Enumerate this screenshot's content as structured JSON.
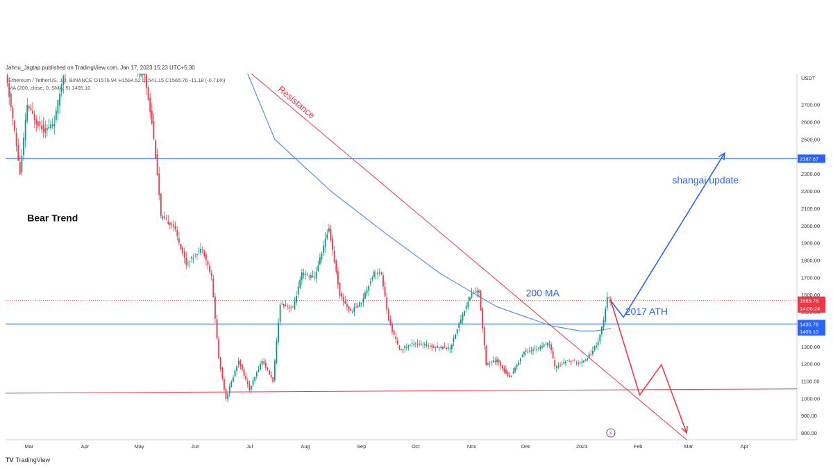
{
  "header": {
    "published": "Jahnu_Jagtap published on TradingView.com, Jan 17, 2023 15:23 UTC+5:30",
    "symbol_line": "Ethereum / TetherUS, 1D, BINANCE  O1576.94  H1594.52  L1541.15  C1565.76  -11.18 (-0.71%)",
    "ma_line": "MA (200, close, 0, SMA, 5)  1405.10"
  },
  "footer": {
    "logo_text": "TradingView"
  },
  "chart_data": {
    "type": "candlestick",
    "symbol": "ETHUSDT",
    "timeframe": "1D",
    "currency": "USDT",
    "y_axis": {
      "range": [
        760,
        2880
      ],
      "ticks": [
        800,
        900,
        1000,
        1100,
        1200,
        1300,
        1400,
        1500,
        1600,
        1700,
        1800,
        1900,
        2000,
        2100,
        2200,
        2300,
        2400,
        2500,
        2600,
        2700
      ]
    },
    "x_axis": {
      "start": "2022-02-16",
      "end": "2023-04-30",
      "ticks": [
        {
          "date": "2022-03-01",
          "label": "Mar"
        },
        {
          "date": "2022-04-01",
          "label": "Apr"
        },
        {
          "date": "2022-05-01",
          "label": "May"
        },
        {
          "date": "2022-06-01",
          "label": "Jun"
        },
        {
          "date": "2022-07-01",
          "label": "Jul"
        },
        {
          "date": "2022-08-01",
          "label": "Aug"
        },
        {
          "date": "2022-09-01",
          "label": "Sep"
        },
        {
          "date": "2022-10-01",
          "label": "Oct"
        },
        {
          "date": "2022-11-01",
          "label": "Nov"
        },
        {
          "date": "2022-12-01",
          "label": "Dec"
        },
        {
          "date": "2023-01-01",
          "label": "2023"
        },
        {
          "date": "2023-02-01",
          "label": "Feb"
        },
        {
          "date": "2023-03-01",
          "label": "Mar"
        },
        {
          "date": "2023-04-01",
          "label": "Apr"
        }
      ]
    },
    "price_path": [
      [
        "2022-02-16",
        2880
      ],
      [
        "2022-02-20",
        2620
      ],
      [
        "2022-02-24",
        2300
      ],
      [
        "2022-02-28",
        2700
      ],
      [
        "2022-03-05",
        2600
      ],
      [
        "2022-03-10",
        2550
      ],
      [
        "2022-03-15",
        2600
      ],
      [
        "2022-03-20",
        2880
      ],
      [
        "2022-05-01",
        2880
      ],
      [
        "2022-05-04",
        2870
      ],
      [
        "2022-05-08",
        2600
      ],
      [
        "2022-05-11",
        2300
      ],
      [
        "2022-05-13",
        2050
      ],
      [
        "2022-05-20",
        2000
      ],
      [
        "2022-05-27",
        1780
      ],
      [
        "2022-06-05",
        1870
      ],
      [
        "2022-06-10",
        1700
      ],
      [
        "2022-06-14",
        1230
      ],
      [
        "2022-06-18",
        1000
      ],
      [
        "2022-06-25",
        1220
      ],
      [
        "2022-07-01",
        1050
      ],
      [
        "2022-07-08",
        1220
      ],
      [
        "2022-07-14",
        1100
      ],
      [
        "2022-07-18",
        1550
      ],
      [
        "2022-07-25",
        1520
      ],
      [
        "2022-07-30",
        1720
      ],
      [
        "2022-08-06",
        1700
      ],
      [
        "2022-08-14",
        1990
      ],
      [
        "2022-08-20",
        1600
      ],
      [
        "2022-08-26",
        1500
      ],
      [
        "2022-09-01",
        1560
      ],
      [
        "2022-09-08",
        1730
      ],
      [
        "2022-09-12",
        1720
      ],
      [
        "2022-09-16",
        1450
      ],
      [
        "2022-09-22",
        1280
      ],
      [
        "2022-09-30",
        1320
      ],
      [
        "2022-10-10",
        1300
      ],
      [
        "2022-10-20",
        1290
      ],
      [
        "2022-10-26",
        1460
      ],
      [
        "2022-11-01",
        1610
      ],
      [
        "2022-11-05",
        1620
      ],
      [
        "2022-11-09",
        1200
      ],
      [
        "2022-11-15",
        1220
      ],
      [
        "2022-11-22",
        1120
      ],
      [
        "2022-11-30",
        1270
      ],
      [
        "2022-12-05",
        1280
      ],
      [
        "2022-12-14",
        1320
      ],
      [
        "2022-12-17",
        1180
      ],
      [
        "2022-12-25",
        1220
      ],
      [
        "2022-12-31",
        1200
      ],
      [
        "2023-01-06",
        1260
      ],
      [
        "2023-01-10",
        1330
      ],
      [
        "2023-01-13",
        1450
      ],
      [
        "2023-01-15",
        1580
      ],
      [
        "2023-01-17",
        1566
      ]
    ],
    "ma200": [
      [
        "2022-06-30",
        2880
      ],
      [
        "2022-07-15",
        2500
      ],
      [
        "2022-08-15",
        2200
      ],
      [
        "2022-09-15",
        1950
      ],
      [
        "2022-10-15",
        1720
      ],
      [
        "2022-11-15",
        1530
      ],
      [
        "2022-12-15",
        1420
      ],
      [
        "2022-12-31",
        1390
      ],
      [
        "2023-01-08",
        1390
      ],
      [
        "2023-01-17",
        1405
      ]
    ],
    "horizontal_lines": [
      {
        "price": 2387.67,
        "color": "#2962ff"
      },
      {
        "price": 1430.76,
        "color": "#2962ff"
      },
      {
        "price": 1565.76,
        "color": "#f23645",
        "style": "dotted"
      }
    ],
    "support_line": {
      "from": [
        "2022-02-16",
        1030
      ],
      "to": [
        "2023-04-30",
        1055
      ],
      "color": "#f23645"
    },
    "resistance_line": {
      "from": [
        "2022-07-02",
        2880
      ],
      "to": [
        "2023-02-28",
        760
      ],
      "color": "#f23645",
      "label": "Resistance"
    },
    "projection_up": [
      [
        "2023-01-17",
        1565
      ],
      [
        "2023-01-24",
        1470
      ],
      [
        "2023-03-21",
        2420
      ]
    ],
    "projection_down": [
      [
        "2023-01-17",
        1565
      ],
      [
        "2023-02-02",
        1020
      ],
      [
        "2023-02-14",
        1195
      ],
      [
        "2023-02-28",
        800
      ]
    ],
    "annotations": [
      {
        "text": "Bear Trend",
        "date": "2022-02-28",
        "price": 2025,
        "color": "#111111",
        "bold": true
      },
      {
        "text": "200 MA",
        "date": "2022-12-01",
        "price": 1590,
        "color": "#2962ff"
      },
      {
        "text": "2017 ATH",
        "date": "2023-01-25",
        "price": 1484,
        "color": "#2962ff"
      },
      {
        "text": "shangai update",
        "date": "2023-02-20",
        "price": 2244,
        "color": "#2962ff"
      }
    ],
    "price_labels": [
      {
        "text": "2387.67",
        "price": 2387.67,
        "color": "#2962ff"
      },
      {
        "text": "1565.76",
        "price": 1565.76,
        "color": "#f23645"
      },
      {
        "text": "14:06:24",
        "price": 1520,
        "color": "#f23645"
      },
      {
        "text": "1430.76",
        "price": 1430.76,
        "color": "#2962ff"
      },
      {
        "text": "1405.10",
        "price": 1388,
        "color": "#2962ff"
      }
    ],
    "event_marker": {
      "date": "2023-01-17",
      "price": 800,
      "color": "#9c27b0",
      "symbol": "⚡"
    }
  },
  "colors": {
    "up": "#089981",
    "down": "#f23645",
    "ma": "#5b8def",
    "axis_text": "#333333",
    "grid": "#eeeeee"
  }
}
